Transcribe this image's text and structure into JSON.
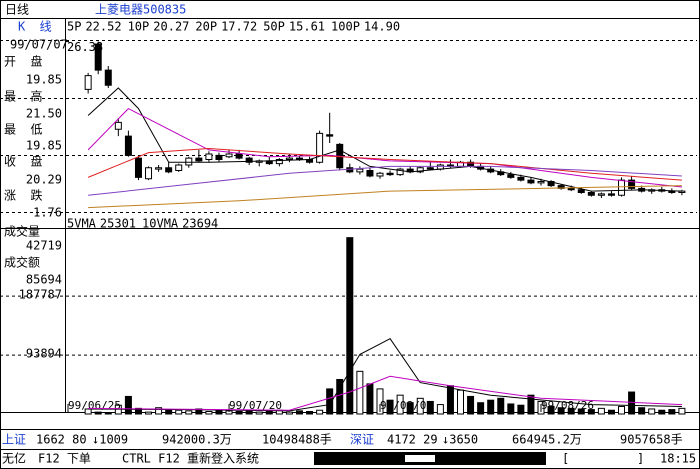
{
  "header": {
    "period": "日线",
    "stock": "上菱电器500835",
    "indicator": "K  线"
  },
  "info": {
    "date": "99/07/07",
    "fields": [
      {
        "label": "开  盘",
        "value": "19.85"
      },
      {
        "label": "最  高",
        "value": "21.50"
      },
      {
        "label": "最  低",
        "value": "19.85"
      },
      {
        "label": "收  盘",
        "value": "20.29"
      },
      {
        "label": "涨  跌",
        "value": "1.76"
      }
    ],
    "volume_label": "成交量",
    "volume": "42719",
    "amount_label": "成交额",
    "amount": "85694"
  },
  "chart_data": [
    {
      "type": "candlestick",
      "xlim": [
        -2.3,
        60.5
      ],
      "ylim": [
        13.4,
        27
      ],
      "yticks": [
        26.38
      ],
      "open": [
        22.9,
        26.2,
        24.3,
        20.0,
        19.5,
        17.9,
        16.4,
        17.1,
        17.2,
        17.0,
        17.4,
        17.9,
        17.8,
        18.1,
        18.0,
        18.2,
        17.9,
        17.6,
        17.7,
        17.5,
        17.8,
        17.9,
        17.8,
        17.6,
        19.6,
        18.9,
        17.2,
        16.9,
        17.0,
        16.6,
        16.8,
        16.7,
        17.1,
        16.9,
        17.2,
        17.1,
        17.4,
        17.3,
        17.6,
        17.3,
        17.1,
        16.9,
        16.7,
        16.5,
        16.3,
        16.1,
        16.2,
        15.9,
        15.7,
        15.6,
        15.4,
        15.2,
        15.3,
        15.2,
        16.3,
        15.7,
        15.5,
        15.6,
        15.5,
        15.4
      ],
      "high": [
        24.1,
        26.38,
        24.6,
        20.8,
        19.9,
        18.1,
        17.3,
        17.4,
        17.6,
        17.5,
        18.0,
        18.5,
        18.4,
        18.3,
        18.5,
        18.5,
        18.0,
        17.8,
        18.0,
        17.9,
        18.2,
        18.1,
        18.0,
        19.9,
        21.2,
        19.0,
        17.5,
        17.3,
        17.2,
        16.9,
        17.0,
        17.2,
        17.3,
        17.3,
        17.6,
        17.5,
        17.8,
        17.7,
        17.8,
        17.5,
        17.3,
        17.1,
        16.9,
        16.7,
        16.5,
        16.4,
        16.3,
        16.0,
        15.9,
        15.8,
        15.5,
        15.4,
        15.5,
        16.5,
        16.6,
        15.9,
        15.7,
        15.8,
        15.7,
        15.6
      ],
      "low": [
        22.6,
        24.0,
        23.0,
        19.5,
        18.0,
        16.3,
        16.3,
        16.9,
        16.8,
        16.9,
        17.2,
        17.6,
        17.6,
        17.6,
        17.9,
        17.8,
        17.4,
        17.3,
        17.4,
        17.3,
        17.6,
        17.7,
        17.5,
        17.5,
        19.0,
        17.0,
        16.8,
        16.7,
        16.5,
        16.4,
        16.6,
        16.6,
        16.8,
        16.8,
        17.0,
        17.0,
        17.2,
        17.2,
        17.2,
        17.0,
        16.8,
        16.6,
        16.4,
        16.2,
        16.0,
        15.9,
        15.8,
        15.6,
        15.5,
        15.3,
        15.1,
        15.0,
        15.1,
        15.1,
        15.6,
        15.4,
        15.3,
        15.4,
        15.3,
        15.2
      ],
      "close": [
        23.9,
        24.3,
        23.2,
        20.5,
        18.1,
        16.5,
        17.2,
        17.2,
        16.9,
        17.4,
        17.9,
        17.7,
        18.2,
        17.8,
        18.2,
        17.9,
        17.6,
        17.7,
        17.5,
        17.8,
        17.9,
        17.8,
        17.6,
        19.7,
        19.5,
        17.2,
        16.9,
        17.1,
        16.6,
        16.8,
        16.7,
        17.1,
        16.9,
        17.2,
        17.1,
        17.4,
        17.3,
        17.6,
        17.3,
        17.1,
        16.9,
        16.7,
        16.5,
        16.3,
        16.1,
        16.2,
        15.9,
        15.7,
        15.6,
        15.4,
        15.2,
        15.3,
        15.2,
        16.3,
        15.7,
        15.5,
        15.6,
        15.5,
        15.4,
        15.5
      ],
      "series": [
        {
          "name": "5P",
          "last": "22.52",
          "color": "#000000",
          "x": [
            0,
            3,
            5,
            8,
            12,
            18,
            22,
            25,
            28,
            32,
            38,
            44,
            50,
            55,
            59
          ],
          "values": [
            21.0,
            23.0,
            21.5,
            17.6,
            17.6,
            17.7,
            17.8,
            18.5,
            17.3,
            16.9,
            17.3,
            16.5,
            15.5,
            15.6,
            15.5
          ]
        },
        {
          "name": "10P",
          "last": "20.27",
          "color": "#c000c0",
          "x": [
            0,
            4,
            8,
            12,
            18,
            24,
            30,
            40,
            50,
            59
          ],
          "values": [
            18.5,
            21.5,
            20.0,
            18.5,
            18.0,
            18.1,
            17.7,
            17.5,
            16.5,
            15.8
          ]
        },
        {
          "name": "20P",
          "last": "17.72",
          "color": "#e02020",
          "x": [
            0,
            6,
            12,
            20,
            30,
            40,
            50,
            59
          ],
          "values": [
            16.5,
            18.3,
            18.6,
            18.2,
            17.8,
            17.5,
            16.8,
            16.3
          ]
        },
        {
          "name": "50P",
          "last": "15.61",
          "color": "#8040c0",
          "x": [
            0,
            10,
            20,
            30,
            40,
            50,
            59
          ],
          "values": [
            15.2,
            16.0,
            16.8,
            17.3,
            17.3,
            17.0,
            16.6
          ]
        },
        {
          "name": "100P",
          "last": "14.90",
          "color": "#c08020",
          "x": [
            0,
            15,
            30,
            45,
            59
          ],
          "values": [
            14.3,
            14.8,
            15.5,
            15.7,
            15.9
          ]
        }
      ]
    },
    {
      "type": "bar",
      "xlim": [
        -2.3,
        60.5
      ],
      "ylim": [
        0,
        290000
      ],
      "yticks": [
        93894,
        187787
      ],
      "xticks": [
        {
          "value": -2,
          "label": "99/06/25"
        },
        {
          "value": 14,
          "label": "99/07/20"
        },
        {
          "value": 29,
          "label": "99/08/09"
        },
        {
          "value": 45,
          "label": "99/08/26"
        }
      ],
      "values": [
        8000,
        3000,
        2000,
        14000,
        28000,
        9000,
        3000,
        10000,
        7000,
        6000,
        5000,
        8000,
        4000,
        6000,
        5000,
        4000,
        5000,
        3000,
        4000,
        6000,
        3000,
        5000,
        4000,
        6000,
        40000,
        55000,
        281000,
        68000,
        48000,
        40000,
        22000,
        30000,
        18000,
        25000,
        20000,
        15000,
        45000,
        38000,
        28000,
        18000,
        22000,
        25000,
        16000,
        14000,
        30000,
        20000,
        12000,
        10000,
        9000,
        8000,
        7000,
        9000,
        6000,
        12000,
        35000,
        10000,
        8000,
        6000,
        7000,
        9000
      ],
      "series": [
        {
          "name": "5VMA",
          "last": "25301",
          "color": "#000000",
          "x": [
            0,
            10,
            20,
            24,
            27,
            30,
            33,
            40,
            50,
            59
          ],
          "values": [
            8000,
            7000,
            5000,
            15000,
            95000,
            120000,
            50000,
            30000,
            15000,
            12000
          ]
        },
        {
          "name": "10VMA",
          "last": "23694",
          "color": "#c000c0",
          "x": [
            0,
            20,
            26,
            30,
            36,
            45,
            59
          ],
          "values": [
            9000,
            6000,
            35000,
            60000,
            45000,
            25000,
            15000
          ]
        }
      ]
    }
  ],
  "status": {
    "sh_label": "上证",
    "sh_index": "1662 80",
    "sh_change": "↓1009",
    "sh_amount": "942000.3万",
    "sh_volume": "10498488手",
    "sz_label": "深证",
    "sz_index": "4172 29",
    "sz_change": "↓3650",
    "sz_amount": "664945.2万",
    "sz_volume": "9057658手"
  },
  "footer": {
    "account": "无亿",
    "order": "F12 下单",
    "relogin": "CTRL F12 重新登入系统",
    "bracket_open": "[",
    "bracket_close": "]",
    "time": "18:15"
  }
}
